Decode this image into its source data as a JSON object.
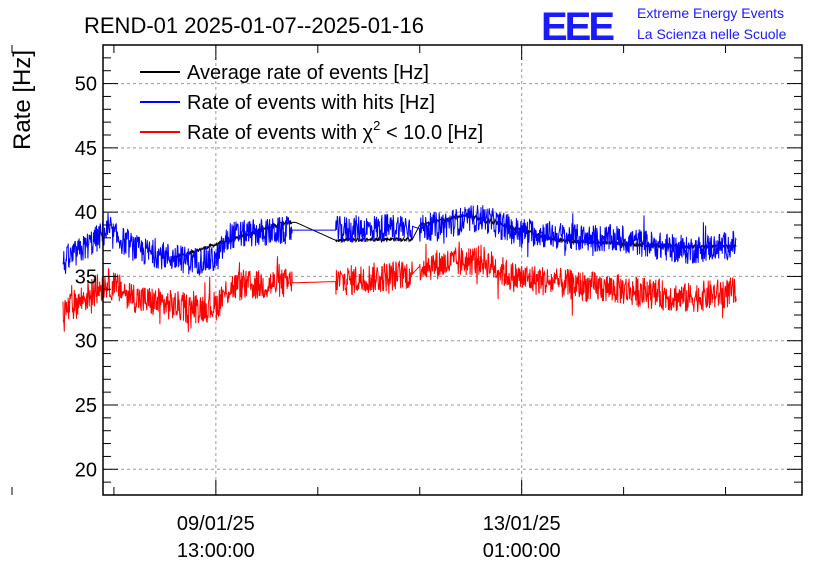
{
  "chart_data": {
    "type": "line",
    "title": "REND-01 2025-01-07--2025-01-16",
    "ylabel": "Rate [Hz]",
    "xlabel": "",
    "ylim": [
      18,
      53
    ],
    "yticks": [
      20,
      25,
      30,
      35,
      40,
      45,
      50
    ],
    "x_unit": "hours since 2025-01-07 00:00",
    "xlim": [
      30,
      222
    ],
    "x_ticks": [
      {
        "x": 61,
        "line1": "09/01/25",
        "line2": "13:00:00"
      },
      {
        "x": 145,
        "line1": "13/01/25",
        "line2": "01:00:00"
      }
    ],
    "minor_xticks": [
      5,
      33,
      89,
      117,
      173,
      201
    ],
    "grid": true,
    "legend_position": "top-left",
    "gaps": [
      [
        82,
        94
      ],
      [
        115,
        117
      ]
    ],
    "series": [
      {
        "name": "Average rate of events [Hz]",
        "legend_prefix": "Average rate of events [Hz]",
        "legend_sup": "",
        "legend_suffix": "",
        "color": "#000000",
        "points": [
          [
            49,
            36.4
          ],
          [
            80,
            39.2
          ],
          [
            83,
            39.2
          ],
          [
            94,
            37.8
          ],
          [
            106,
            37.9
          ],
          [
            115,
            37.9
          ],
          [
            117,
            39.0
          ],
          [
            130,
            39.8
          ],
          [
            155,
            37.8
          ],
          [
            190,
            37.3
          ],
          [
            204,
            37.4
          ]
        ],
        "noise": 0.3
      },
      {
        "name": "Rate of events with hits [Hz]",
        "legend_prefix": "Rate of events with hits [Hz]",
        "legend_sup": "",
        "legend_suffix": "",
        "color": "#0000ff",
        "points": [
          [
            19,
            36.0
          ],
          [
            31,
            38.5
          ],
          [
            40,
            37.0
          ],
          [
            54,
            36.2
          ],
          [
            61,
            36.3
          ],
          [
            65,
            38.2
          ],
          [
            82,
            38.6
          ],
          [
            94,
            38.6
          ],
          [
            115,
            38.9
          ],
          [
            117,
            38.7
          ],
          [
            134,
            39.6
          ],
          [
            142,
            38.6
          ],
          [
            160,
            38.0
          ],
          [
            172,
            37.9
          ],
          [
            190,
            37.0
          ],
          [
            204,
            37.5
          ]
        ],
        "noise": 2.2
      },
      {
        "name": "Rate of events with χ² < 10.0 [Hz]",
        "legend_prefix": "Rate of events with χ",
        "legend_sup": "2",
        "legend_suffix": " < 10.0 [Hz]",
        "color": "#ff0000",
        "points": [
          [
            19,
            32.2
          ],
          [
            31,
            34.5
          ],
          [
            40,
            33.2
          ],
          [
            54,
            32.5
          ],
          [
            61,
            32.7
          ],
          [
            65,
            34.2
          ],
          [
            82,
            34.5
          ],
          [
            94,
            34.6
          ],
          [
            115,
            35.2
          ],
          [
            117,
            35.8
          ],
          [
            134,
            36.3
          ],
          [
            142,
            35.0
          ],
          [
            160,
            34.3
          ],
          [
            172,
            34.0
          ],
          [
            190,
            33.3
          ],
          [
            204,
            33.8
          ]
        ],
        "noise": 2.4
      }
    ]
  },
  "logo": {
    "mark": "EEE",
    "line1": "Extreme Energy Events",
    "line2": "La Scienza nelle Scuole",
    "color": "#1a1aff"
  }
}
